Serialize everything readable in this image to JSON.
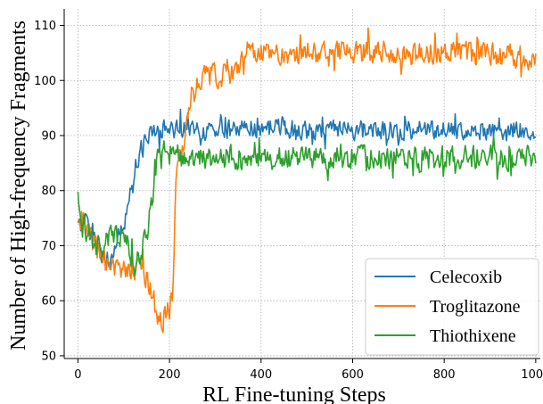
{
  "chart_data": {
    "type": "line",
    "title": "",
    "xlabel": "RL Fine-tuning Steps",
    "ylabel": "Number of High-frequency Fragments",
    "xlim": [
      -30,
      1010
    ],
    "ylim": [
      49.5,
      113
    ],
    "x_ticks": [
      0,
      200,
      400,
      600,
      800,
      1000
    ],
    "y_ticks": [
      50,
      60,
      70,
      80,
      90,
      100,
      110
    ],
    "grid": true,
    "legend_position": "lower-right",
    "series": [
      {
        "name": "Celecoxib",
        "color": "#1f77b4",
        "anchors": [
          [
            0,
            73
          ],
          [
            15,
            75
          ],
          [
            30,
            72
          ],
          [
            50,
            69
          ],
          [
            70,
            67
          ],
          [
            85,
            71
          ],
          [
            100,
            74
          ],
          [
            115,
            80
          ],
          [
            130,
            86
          ],
          [
            150,
            89
          ],
          [
            170,
            91
          ],
          [
            200,
            91
          ],
          [
            300,
            91
          ],
          [
            400,
            91.5
          ],
          [
            500,
            91
          ],
          [
            600,
            91
          ],
          [
            700,
            91
          ],
          [
            800,
            91
          ],
          [
            900,
            91
          ],
          [
            1000,
            91
          ]
        ],
        "noise": 1.6,
        "min": 60,
        "max": 96
      },
      {
        "name": "Troglitazone",
        "color": "#ff7f0e",
        "anchors": [
          [
            0,
            76
          ],
          [
            15,
            74
          ],
          [
            30,
            71
          ],
          [
            50,
            68
          ],
          [
            70,
            66
          ],
          [
            90,
            66
          ],
          [
            110,
            66
          ],
          [
            130,
            66
          ],
          [
            150,
            64
          ],
          [
            165,
            60
          ],
          [
            180,
            56
          ],
          [
            200,
            58
          ],
          [
            207,
            62
          ],
          [
            213,
            80
          ],
          [
            220,
            85
          ],
          [
            235,
            90
          ],
          [
            250,
            99
          ],
          [
            270,
            101
          ],
          [
            300,
            101
          ],
          [
            340,
            101
          ],
          [
            350,
            103
          ],
          [
            360,
            105
          ],
          [
            400,
            105
          ],
          [
            500,
            105
          ],
          [
            600,
            105
          ],
          [
            700,
            105
          ],
          [
            800,
            105
          ],
          [
            900,
            105
          ],
          [
            1000,
            104
          ]
        ],
        "noise": 2.0,
        "min": 52,
        "max": 110
      },
      {
        "name": "Thiothixene",
        "color": "#2ca02c",
        "anchors": [
          [
            0,
            80
          ],
          [
            10,
            74
          ],
          [
            20,
            72
          ],
          [
            40,
            70
          ],
          [
            60,
            70
          ],
          [
            75,
            72
          ],
          [
            90,
            72
          ],
          [
            110,
            69
          ],
          [
            130,
            66
          ],
          [
            150,
            72
          ],
          [
            165,
            80
          ],
          [
            175,
            86
          ],
          [
            190,
            87
          ],
          [
            230,
            86
          ],
          [
            300,
            86
          ],
          [
            400,
            86
          ],
          [
            500,
            86
          ],
          [
            600,
            86
          ],
          [
            700,
            86
          ],
          [
            800,
            86
          ],
          [
            900,
            86
          ],
          [
            1000,
            86
          ]
        ],
        "noise": 2.0,
        "min": 61,
        "max": 92
      }
    ]
  }
}
